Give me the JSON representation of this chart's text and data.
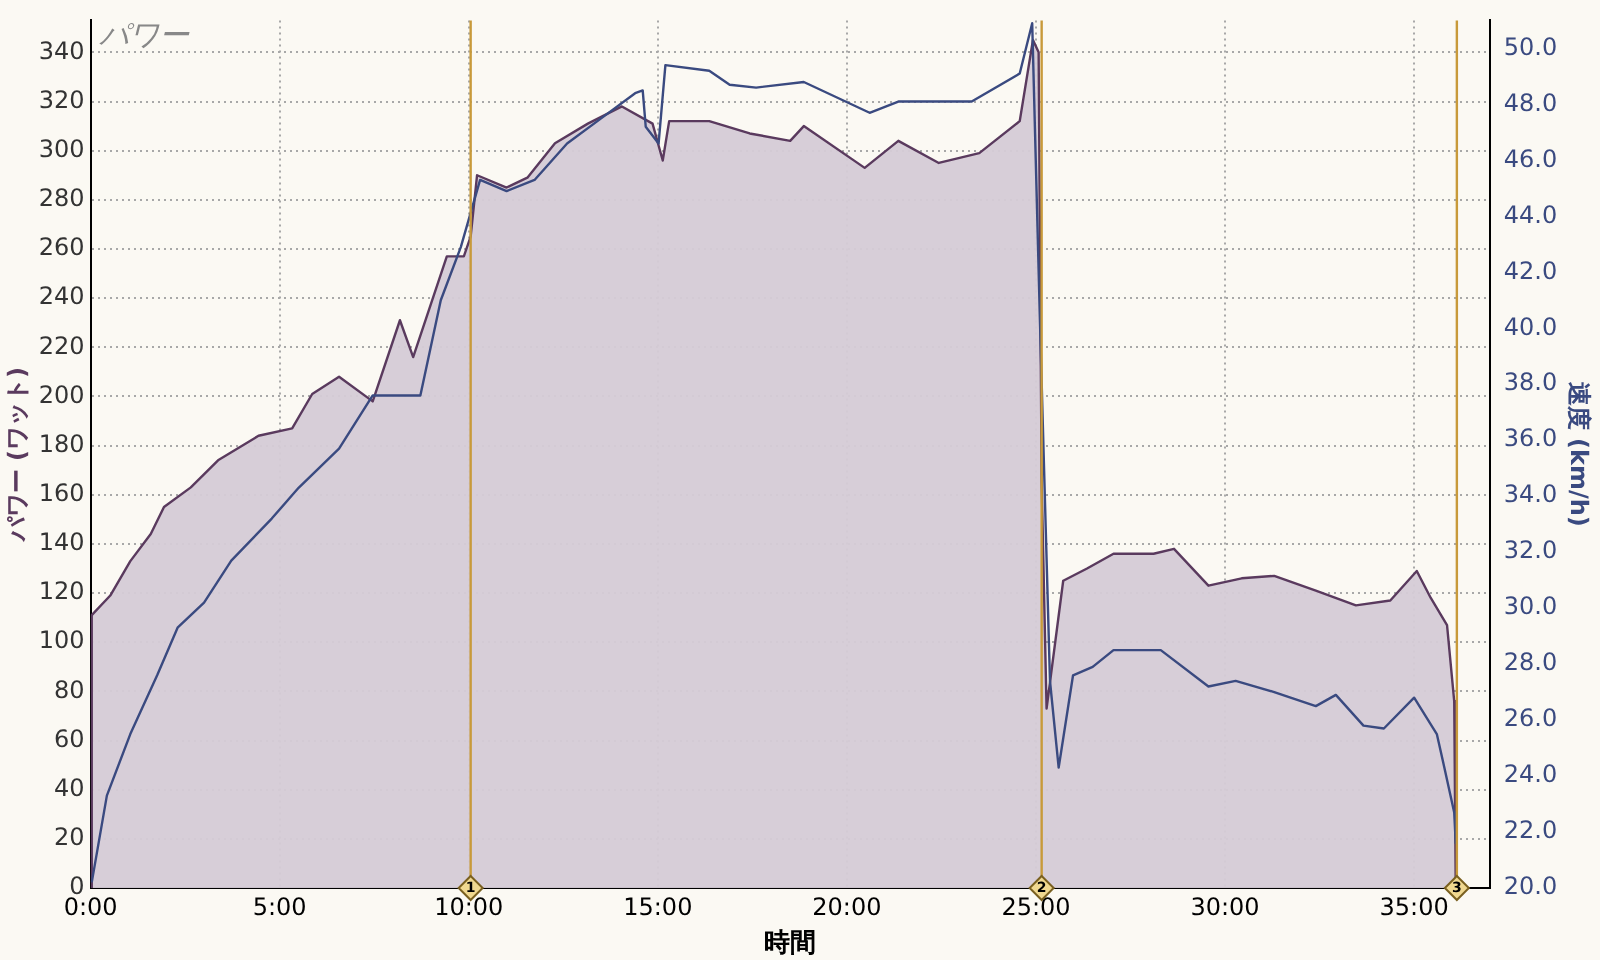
{
  "chart_data": {
    "type": "area",
    "title": "パワー",
    "xlabel": "時間",
    "ylabel": "パワー (ワット)",
    "y2label": "速度 (km/h)",
    "series": [
      {
        "color": "#5a3a5e",
        "x": [
          0,
          0.03,
          0.52,
          1.05,
          1.59,
          1.94,
          2.65,
          3.37,
          4.44,
          5.33,
          5.86,
          6.57,
          7.46,
          8.18,
          8.53,
          9.42,
          9.87,
          10.05,
          10.22,
          11.0,
          11.55,
          12.28,
          13.15,
          14.05,
          14.86,
          15.13,
          15.3,
          16.36,
          17.43,
          18.5,
          18.86,
          20.47,
          21.36,
          22.43,
          23.5,
          24.57,
          24.92,
          25.07,
          25.15,
          25.28,
          25.72,
          26.35,
          27.05,
          28.11,
          28.65,
          29.56,
          30.44,
          31.3,
          32.4,
          33.46,
          34.37,
          35.07,
          35.44,
          35.87,
          36.06,
          36.1
        ],
        "values": [
          0,
          111,
          119,
          133,
          144,
          155,
          163,
          174,
          184,
          187,
          201,
          208,
          198,
          231,
          216,
          257,
          257,
          265,
          290,
          285,
          289,
          303,
          311,
          318,
          311,
          296,
          312,
          312,
          307,
          304,
          310,
          293,
          304,
          295,
          299,
          312,
          345,
          340,
          165,
          73,
          125,
          130,
          136,
          136,
          138,
          123,
          126,
          127,
          121,
          115,
          117,
          129,
          118,
          107,
          76,
          0
        ]
      },
      {
        "type": "line",
        "axis": "y2",
        "color": "#3a4a80",
        "x": [
          0.03,
          0.43,
          1.05,
          1.76,
          2.3,
          3.0,
          3.72,
          4.79,
          5.5,
          6.57,
          7.46,
          8.72,
          9.26,
          9.79,
          10.3,
          11.0,
          11.74,
          12.6,
          13.5,
          14.4,
          14.6,
          14.68,
          15.02,
          15.2,
          16.36,
          16.9,
          17.6,
          18.86,
          20.6,
          21.36,
          23.3,
          24.57,
          24.9,
          25.1,
          25.37,
          25.6,
          25.98,
          26.5,
          27.05,
          28.3,
          29.56,
          30.28,
          31.3,
          32.4,
          32.93,
          33.66,
          34.2,
          35.0,
          35.6,
          35.8,
          36.06,
          36.1
        ],
        "values": [
          20.2,
          23.3,
          25.5,
          27.6,
          29.3,
          30.2,
          31.7,
          33.2,
          34.3,
          35.7,
          37.6,
          37.6,
          41.0,
          42.9,
          45.3,
          44.9,
          45.3,
          46.6,
          47.5,
          48.4,
          48.5,
          47.2,
          46.6,
          49.4,
          49.2,
          48.7,
          48.6,
          48.8,
          47.7,
          48.1,
          48.1,
          49.1,
          50.9,
          40.5,
          27.4,
          24.3,
          27.6,
          27.9,
          28.5,
          28.5,
          27.2,
          27.4,
          27.0,
          26.5,
          26.9,
          25.8,
          25.7,
          26.8,
          25.5,
          24.3,
          22.7,
          21.6
        ]
      }
    ],
    "xlim": [
      0,
      37
    ],
    "xticks": [
      {
        "value": 0,
        "label": "0:00"
      },
      {
        "value": 5,
        "label": "5:00"
      },
      {
        "value": 10,
        "label": "10:00"
      },
      {
        "value": 15,
        "label": "15:00"
      },
      {
        "value": 20,
        "label": "20:00"
      },
      {
        "value": 25,
        "label": "25:00"
      },
      {
        "value": 30,
        "label": "30:00"
      },
      {
        "value": 35,
        "label": "35:00"
      }
    ],
    "ylim": [
      0,
      353
    ],
    "yticks": [
      0,
      20,
      40,
      60,
      80,
      100,
      120,
      140,
      160,
      180,
      200,
      220,
      240,
      260,
      280,
      300,
      320,
      340
    ],
    "y2lim": [
      20,
      51
    ],
    "y2ticks": [
      {
        "value": 20,
        "label": "20.0"
      },
      {
        "value": 22,
        "label": "22.0"
      },
      {
        "value": 24,
        "label": "24.0"
      },
      {
        "value": 26,
        "label": "26.0"
      },
      {
        "value": 28,
        "label": "28.0"
      },
      {
        "value": 30,
        "label": "30.0"
      },
      {
        "value": 32,
        "label": "32.0"
      },
      {
        "value": 34,
        "label": "34.0"
      },
      {
        "value": 36,
        "label": "36.0"
      },
      {
        "value": 38,
        "label": "38.0"
      },
      {
        "value": 40,
        "label": "40.0"
      },
      {
        "value": 42,
        "label": "42.0"
      },
      {
        "value": 44,
        "label": "44.0"
      },
      {
        "value": 46,
        "label": "46.0"
      },
      {
        "value": 48,
        "label": "48.0"
      },
      {
        "value": 50,
        "label": "50.0"
      }
    ],
    "ref_lines": [
      {
        "axis": "x",
        "value": 10.05,
        "color": "#c89a3a"
      },
      {
        "axis": "x",
        "value": 25.15,
        "color": "#c89a3a"
      },
      {
        "axis": "x",
        "value": 36.13,
        "color": "#c89a3a"
      }
    ],
    "annotations": [
      {
        "text": "1",
        "x": 10.05,
        "y": 0
      },
      {
        "text": "2",
        "x": 25.15,
        "y": 0
      },
      {
        "text": "3",
        "x": 36.13,
        "y": 0
      }
    ],
    "grid": true,
    "legend": false,
    "marker": "none",
    "line_style": "solid"
  }
}
